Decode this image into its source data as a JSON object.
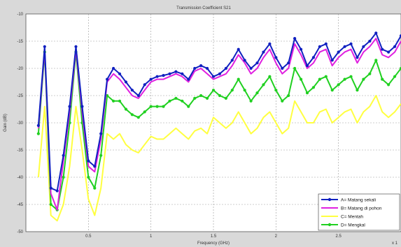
{
  "chart_data": {
    "type": "line",
    "title": "Transmission Coefficient S21",
    "xlabel": "Frequency (GHz)",
    "ylabel": "Gain (dB)",
    "xlim": [
      0,
      3
    ],
    "ylim": [
      -50,
      -10
    ],
    "x_ticks": [
      0.5,
      1,
      1.5,
      2,
      2.5
    ],
    "x_tick_labels": [
      "0.5",
      "1",
      "1.5",
      "2",
      "2.5"
    ],
    "y_ticks": [
      -10,
      -15,
      -20,
      -25,
      -30,
      -35,
      -40,
      -45,
      -50
    ],
    "y_tick_labels": [
      "-10",
      "-15",
      "-20",
      "-25",
      "-30",
      "-35",
      "-40",
      "-45",
      "-50"
    ],
    "x_exponent_label": "x 1",
    "grid": true,
    "legend_position": "bottom-right",
    "x": [
      0.1,
      0.15,
      0.2,
      0.25,
      0.3,
      0.35,
      0.4,
      0.45,
      0.5,
      0.55,
      0.6,
      0.65,
      0.7,
      0.75,
      0.8,
      0.85,
      0.9,
      0.95,
      1.0,
      1.05,
      1.1,
      1.15,
      1.2,
      1.25,
      1.3,
      1.35,
      1.4,
      1.45,
      1.5,
      1.55,
      1.6,
      1.65,
      1.7,
      1.75,
      1.8,
      1.85,
      1.9,
      1.95,
      2.0,
      2.05,
      2.1,
      2.15,
      2.2,
      2.25,
      2.3,
      2.35,
      2.4,
      2.45,
      2.5,
      2.55,
      2.6,
      2.65,
      2.7,
      2.75,
      2.8,
      2.85,
      2.9,
      2.95,
      3.0
    ],
    "series": [
      {
        "name": "A= Matang sekali",
        "color": "#1020c0",
        "marker": "circle",
        "values": [
          -30.5,
          -16,
          -42,
          -42.5,
          -36,
          -27,
          -16,
          -27,
          -37,
          -38,
          -32,
          -22,
          -20,
          -21,
          -22.5,
          -24,
          -25,
          -23,
          -22,
          -21.5,
          -21.3,
          -21,
          -20.6,
          -21,
          -22,
          -20,
          -19.5,
          -20,
          -21.5,
          -21,
          -20,
          -18.5,
          -16.5,
          -18.5,
          -20,
          -19,
          -17,
          -15.5,
          -18,
          -20,
          -19,
          -14.5,
          -16.5,
          -19.5,
          -18,
          -16,
          -15.5,
          -18.5,
          -17,
          -16,
          -15.5,
          -18,
          -16,
          -15,
          -13.5,
          -16.5,
          -17,
          -16,
          -14
        ]
      },
      {
        "name": "B= Matang di pohon",
        "color": "#e020e0",
        "marker": "none",
        "values": [
          -31,
          -16.5,
          -43,
          -46,
          -37,
          -28,
          -16.5,
          -28,
          -38,
          -39,
          -33,
          -22.5,
          -21,
          -22,
          -23.5,
          -25,
          -25.5,
          -24,
          -22.5,
          -22,
          -22,
          -21.5,
          -21,
          -21.5,
          -22.5,
          -20.5,
          -20,
          -21,
          -22,
          -21.5,
          -21,
          -19.5,
          -17.5,
          -19,
          -21,
          -20,
          -18,
          -16.5,
          -19,
          -21,
          -20,
          -15.5,
          -17.5,
          -20,
          -19,
          -17,
          -16.5,
          -19.5,
          -18,
          -17,
          -16.5,
          -19,
          -17,
          -16,
          -14.5,
          -17.5,
          -18,
          -17,
          -15
        ]
      },
      {
        "name": "C= Mentah",
        "color": "#ffff40",
        "marker": "none",
        "values": [
          -40,
          -27,
          -47,
          -48,
          -45,
          -38,
          -27,
          -35,
          -44,
          -47,
          -42,
          -32,
          -33,
          -32,
          -34,
          -35,
          -35.5,
          -34,
          -32.5,
          -33,
          -33,
          -32,
          -31,
          -32,
          -33,
          -31.5,
          -31,
          -32,
          -29,
          -30,
          -31,
          -30,
          -28,
          -30,
          -32,
          -31,
          -29,
          -28,
          -30,
          -32,
          -31,
          -26,
          -28,
          -30,
          -30,
          -28,
          -27.5,
          -30,
          -29,
          -28,
          -27.5,
          -30,
          -28,
          -27,
          -25,
          -28,
          -29,
          -28,
          -26.5
        ]
      },
      {
        "name": "D= Mengkal",
        "color": "#20d020",
        "marker": "circle",
        "values": [
          -32,
          -17,
          -45,
          -46,
          -40,
          -30,
          -17,
          -30,
          -40,
          -42,
          -36,
          -25,
          -26,
          -26,
          -27.5,
          -28.5,
          -29,
          -28,
          -27,
          -27,
          -27,
          -26,
          -25.5,
          -26,
          -27,
          -25.5,
          -25,
          -25.5,
          -24,
          -25,
          -25.5,
          -24,
          -22,
          -24,
          -26,
          -24.5,
          -23,
          -21.5,
          -24,
          -26,
          -25,
          -20,
          -22,
          -24.5,
          -23.5,
          -22,
          -21.5,
          -24,
          -23,
          -22,
          -21.5,
          -24,
          -22,
          -21,
          -18.5,
          -22,
          -23,
          -21.5,
          -20
        ]
      }
    ]
  }
}
